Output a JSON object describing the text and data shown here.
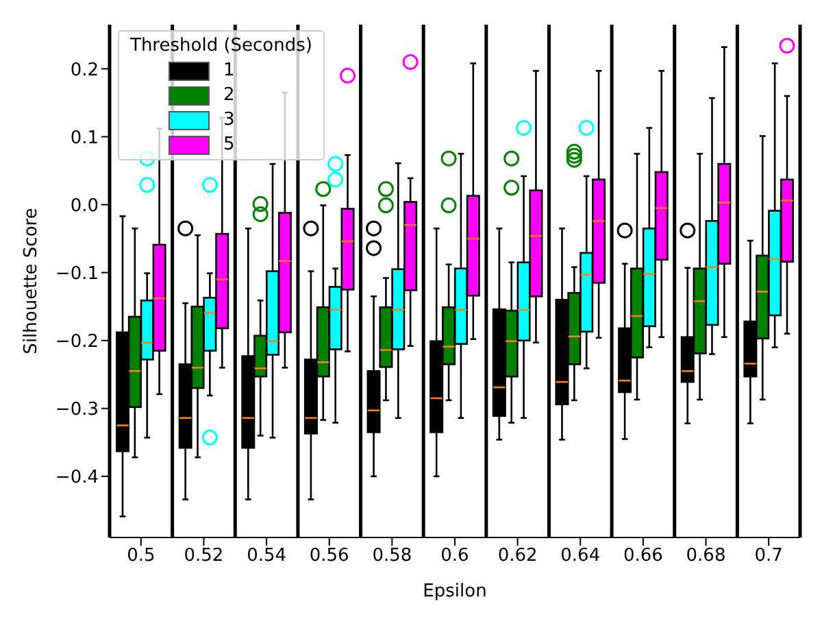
{
  "chart_data": {
    "type": "box",
    "xlabel": "Epsilon",
    "ylabel": "Silhouette Score",
    "legend_title": "Threshold (Seconds)",
    "legend": "top left",
    "grid": "x",
    "categories": [
      "0.5",
      "0.52",
      "0.54",
      "0.56",
      "0.58",
      "0.6",
      "0.62",
      "0.64",
      "0.66",
      "0.68",
      "0.7"
    ],
    "ylim": [
      -0.49,
      0.265
    ],
    "yticks": [
      {
        "value": -0.4,
        "label": "−0.4"
      },
      {
        "value": -0.3,
        "label": "−0.3"
      },
      {
        "value": -0.2,
        "label": "−0.2"
      },
      {
        "value": -0.1,
        "label": "−0.1"
      },
      {
        "value": 0,
        "label": "0.0"
      },
      0.1,
      0.2
    ],
    "series": [
      {
        "name": "1",
        "color": "#000000",
        "boxes": [
          {
            "low": -0.459,
            "q1": -0.363,
            "median": -0.325,
            "q3": -0.188,
            "high": -0.017
          },
          {
            "low": -0.434,
            "q1": -0.358,
            "median": -0.314,
            "q3": -0.235,
            "high": -0.145,
            "outliers": [
              -0.035
            ]
          },
          {
            "low": -0.434,
            "q1": -0.358,
            "median": -0.314,
            "q3": -0.223,
            "high": -0.035
          },
          {
            "low": -0.434,
            "q1": -0.337,
            "median": -0.314,
            "q3": -0.228,
            "high": -0.098,
            "outliers": [
              -0.035
            ]
          },
          {
            "low": -0.4,
            "q1": -0.335,
            "median": -0.303,
            "q3": -0.245,
            "high": -0.135,
            "outliers": [
              -0.035,
              -0.064
            ]
          },
          {
            "low": -0.4,
            "q1": -0.335,
            "median": -0.285,
            "q3": -0.201,
            "high": -0.035
          },
          {
            "low": -0.346,
            "q1": -0.311,
            "median": -0.269,
            "q3": -0.154,
            "high": -0.035
          },
          {
            "low": -0.346,
            "q1": -0.294,
            "median": -0.261,
            "q3": -0.14,
            "high": -0.035
          },
          {
            "low": -0.345,
            "q1": -0.276,
            "median": -0.259,
            "q3": -0.182,
            "high": -0.087,
            "outliers": [
              -0.038
            ]
          },
          {
            "low": -0.322,
            "q1": -0.261,
            "median": -0.245,
            "q3": -0.195,
            "high": -0.093,
            "outliers": [
              -0.038
            ]
          },
          {
            "low": -0.322,
            "q1": -0.253,
            "median": -0.234,
            "q3": -0.172,
            "high": -0.053
          }
        ]
      },
      {
        "name": "2",
        "color": "#008000",
        "boxes": [
          {
            "low": -0.372,
            "q1": -0.298,
            "median": -0.245,
            "q3": -0.165,
            "high": -0.035
          },
          {
            "low": -0.372,
            "q1": -0.27,
            "median": -0.24,
            "q3": -0.15,
            "high": -0.045
          },
          {
            "low": -0.34,
            "q1": -0.253,
            "median": -0.241,
            "q3": -0.193,
            "high": -0.141,
            "outliers": [
              0.001,
              -0.014
            ]
          },
          {
            "low": -0.317,
            "q1": -0.253,
            "median": -0.232,
            "q3": -0.151,
            "high": -0.001,
            "outliers": [
              0.023
            ]
          },
          {
            "low": -0.288,
            "q1": -0.239,
            "median": -0.214,
            "q3": -0.151,
            "high": -0.108,
            "outliers": [
              0.023,
              -0.001
            ]
          },
          {
            "low": -0.288,
            "q1": -0.235,
            "median": -0.209,
            "q3": -0.151,
            "high": -0.088,
            "outliers": [
              0.068,
              -0.001
            ]
          },
          {
            "low": -0.321,
            "q1": -0.253,
            "median": -0.201,
            "q3": -0.156,
            "high": -0.085,
            "outliers": [
              0.068,
              0.025
            ]
          },
          {
            "low": -0.288,
            "q1": -0.235,
            "median": -0.194,
            "q3": -0.13,
            "high": -0.092,
            "outliers": [
              0.078,
              0.072,
              0.066
            ]
          },
          {
            "low": -0.287,
            "q1": -0.225,
            "median": -0.164,
            "q3": -0.094,
            "high": 0.075
          },
          {
            "low": -0.287,
            "q1": -0.219,
            "median": -0.142,
            "q3": -0.094,
            "high": 0.075
          },
          {
            "low": -0.287,
            "q1": -0.197,
            "median": -0.128,
            "q3": -0.075,
            "high": 0.101
          }
        ]
      },
      {
        "name": "3",
        "color": "#00ffff",
        "boxes": [
          {
            "low": -0.343,
            "q1": -0.228,
            "median": -0.203,
            "q3": -0.141,
            "high": -0.101,
            "outliers": [
              0.068,
              0.029
            ]
          },
          {
            "low": -0.281,
            "q1": -0.215,
            "median": -0.159,
            "q3": -0.137,
            "high": -0.101,
            "outliers": [
              0.029,
              -0.343
            ]
          },
          {
            "low": -0.343,
            "q1": -0.221,
            "median": -0.201,
            "q3": -0.098,
            "high": 0.06
          },
          {
            "low": -0.321,
            "q1": -0.213,
            "median": -0.155,
            "q3": -0.121,
            "high": -0.094,
            "outliers": [
              0.06,
              0.037
            ]
          },
          {
            "low": -0.314,
            "q1": -0.213,
            "median": -0.155,
            "q3": -0.095,
            "high": 0.061
          },
          {
            "low": -0.314,
            "q1": -0.205,
            "median": -0.155,
            "q3": -0.094,
            "high": 0.075
          },
          {
            "low": -0.314,
            "q1": -0.2,
            "median": -0.155,
            "q3": -0.085,
            "high": 0.042,
            "outliers": [
              0.113
            ]
          },
          {
            "low": -0.241,
            "q1": -0.187,
            "median": -0.103,
            "q3": -0.071,
            "high": 0.042,
            "outliers": [
              0.113
            ]
          },
          {
            "low": -0.21,
            "q1": -0.179,
            "median": -0.102,
            "q3": -0.035,
            "high": 0.113
          },
          {
            "low": -0.22,
            "q1": -0.177,
            "median": -0.092,
            "q3": -0.024,
            "high": 0.157
          },
          {
            "low": -0.21,
            "q1": -0.163,
            "median": -0.08,
            "q3": -0.009,
            "high": 0.208
          }
        ]
      },
      {
        "name": "5",
        "color": "#ff00ff",
        "boxes": [
          {
            "low": -0.279,
            "q1": -0.215,
            "median": -0.138,
            "q3": -0.059,
            "high": 0.112
          },
          {
            "low": -0.24,
            "q1": -0.182,
            "median": -0.11,
            "q3": -0.043,
            "high": 0.128
          },
          {
            "low": -0.24,
            "q1": -0.188,
            "median": -0.083,
            "q3": -0.012,
            "high": 0.165
          },
          {
            "low": -0.216,
            "q1": -0.125,
            "median": -0.054,
            "q3": -0.006,
            "high": 0.073,
            "outliers": [
              0.19
            ]
          },
          {
            "low": -0.208,
            "q1": -0.126,
            "median": -0.03,
            "q3": 0.004,
            "high": 0.039,
            "outliers": [
              0.21
            ]
          },
          {
            "low": -0.198,
            "q1": -0.134,
            "median": -0.05,
            "q3": 0.013,
            "high": 0.208
          },
          {
            "low": -0.203,
            "q1": -0.135,
            "median": -0.046,
            "q3": 0.021,
            "high": 0.197
          },
          {
            "low": -0.196,
            "q1": -0.115,
            "median": -0.024,
            "q3": 0.037,
            "high": 0.197
          },
          {
            "low": -0.195,
            "q1": -0.081,
            "median": -0.005,
            "q3": 0.048,
            "high": 0.197
          },
          {
            "low": -0.195,
            "q1": -0.087,
            "median": 0.003,
            "q3": 0.06,
            "high": 0.232
          },
          {
            "low": -0.19,
            "q1": -0.084,
            "median": 0.006,
            "q3": 0.037,
            "high": 0.16,
            "outliers": [
              0.234
            ]
          }
        ]
      }
    ]
  }
}
